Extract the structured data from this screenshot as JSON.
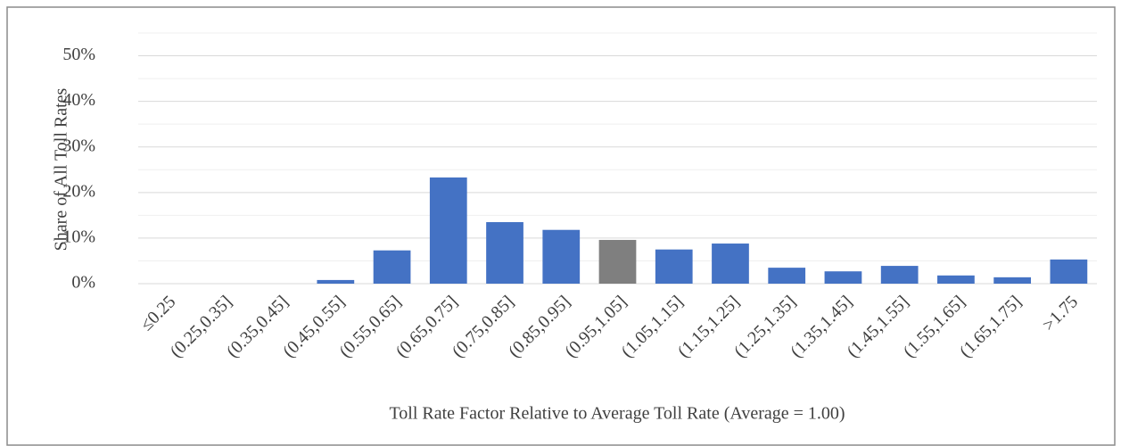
{
  "chart_data": {
    "type": "bar",
    "y_label": "Share of All Toll Rates",
    "x_label": "Toll Rate Factor Relative to Average Toll Rate (Average = 1.00)",
    "categories": [
      "≤0.25",
      "(0.25,0.35]",
      "(0.35,0.45]",
      "(0.45,0.55]",
      "(0.55,0.65]",
      "(0.65,0.75]",
      "(0.75,0.85]",
      "(0.85,0.95]",
      "(0.95,1.05]",
      "(1.05,1.15]",
      "(1.15,1.25]",
      "(1.25,1.35]",
      "(1.35,1.45]",
      "(1.45,1.55]",
      "(1.55,1.65]",
      "(1.65,1.75]",
      ">1.75"
    ],
    "values": [
      0,
      0,
      0,
      0.8,
      7.3,
      23.3,
      13.5,
      11.8,
      9.6,
      7.5,
      8.8,
      3.5,
      2.7,
      3.9,
      1.8,
      1.4,
      5.3
    ],
    "colors": [
      "#4472c4",
      "#4472c4",
      "#4472c4",
      "#4472c4",
      "#4472c4",
      "#4472c4",
      "#4472c4",
      "#4472c4",
      "#7f7f7f",
      "#4472c4",
      "#4472c4",
      "#4472c4",
      "#4472c4",
      "#4472c4",
      "#4472c4",
      "#4472c4",
      "#4472c4"
    ],
    "ylim": [
      0,
      55
    ],
    "yticks": [
      {
        "value": 0,
        "label": "0%"
      },
      {
        "value": 10,
        "label": "10%"
      },
      {
        "value": 20,
        "label": "20%"
      },
      {
        "value": 30,
        "label": "30%"
      },
      {
        "value": 40,
        "label": "40%"
      },
      {
        "value": 50,
        "label": "50%"
      }
    ],
    "minor_yticks": [
      5,
      15,
      25,
      35,
      45,
      55
    ],
    "grid": true
  }
}
